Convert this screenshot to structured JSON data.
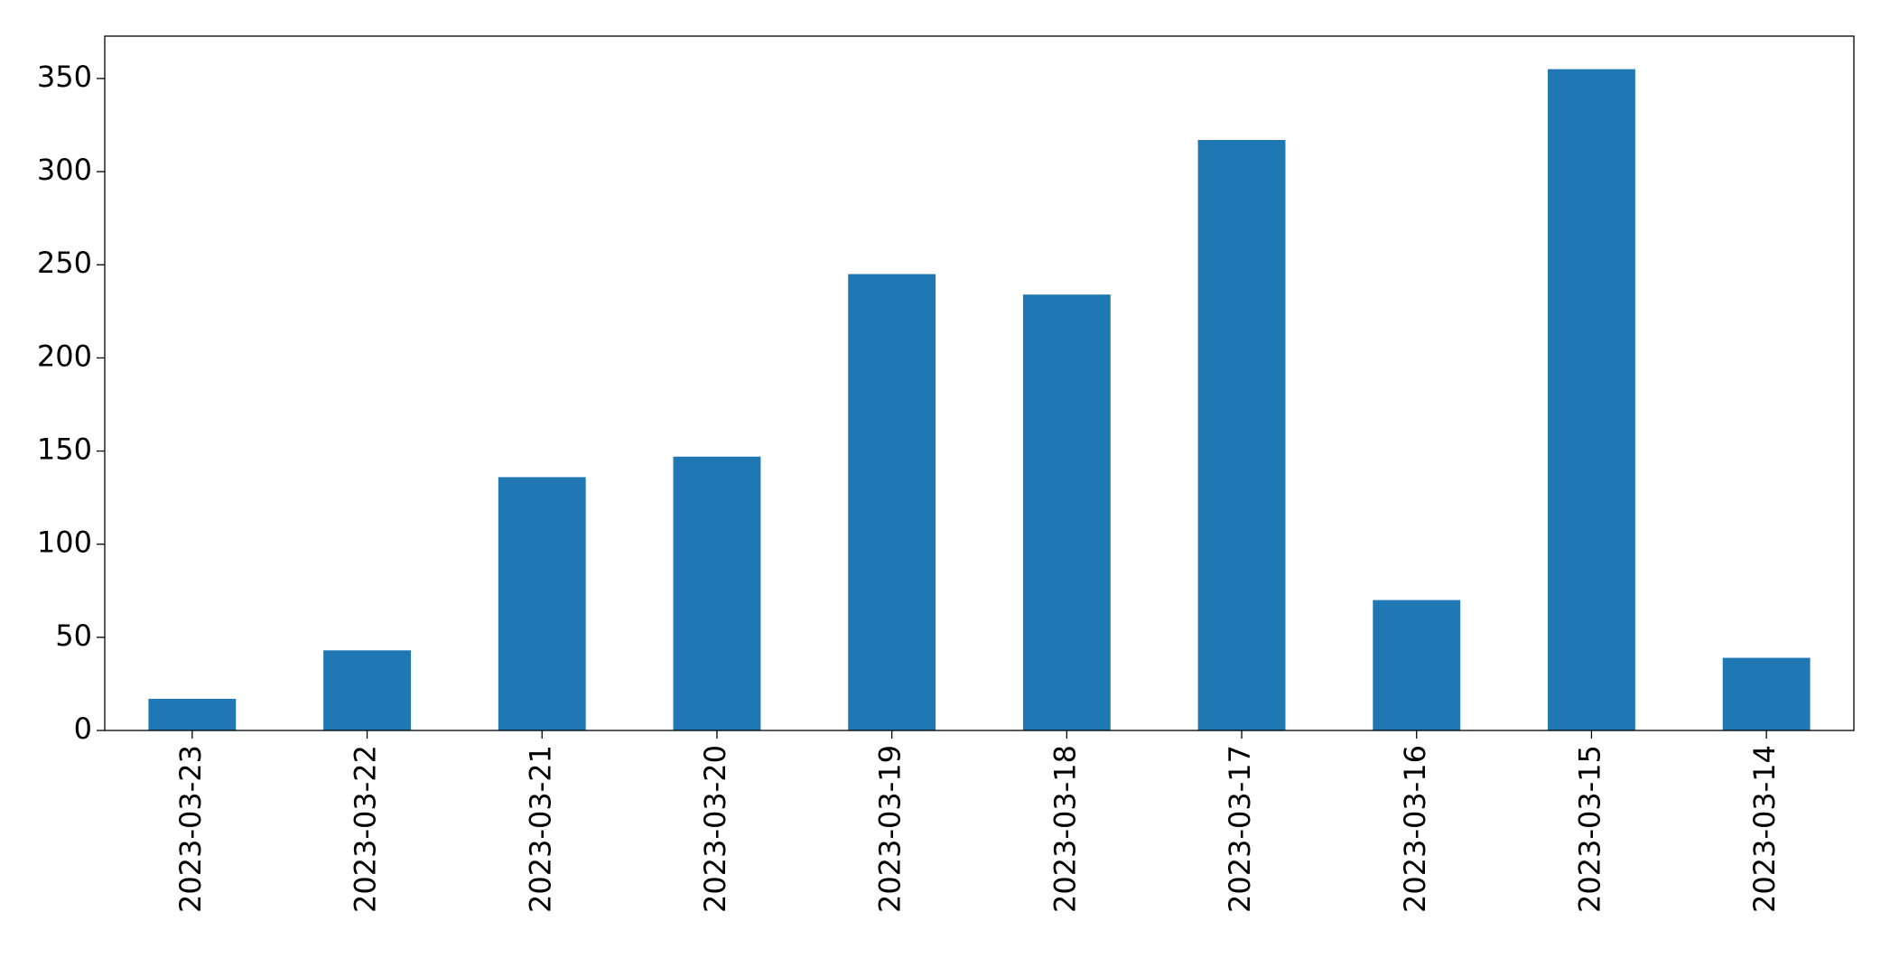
{
  "chart_data": {
    "type": "bar",
    "categories": [
      "2023-03-23",
      "2023-03-22",
      "2023-03-21",
      "2023-03-20",
      "2023-03-19",
      "2023-03-18",
      "2023-03-17",
      "2023-03-16",
      "2023-03-15",
      "2023-03-14"
    ],
    "values": [
      17,
      43,
      136,
      147,
      245,
      234,
      317,
      70,
      355,
      39
    ],
    "color": "#1f77b4",
    "ylim": [
      0,
      372.75
    ],
    "yticks": [
      0,
      50,
      100,
      150,
      200,
      250,
      300,
      350
    ],
    "grid": false
  }
}
